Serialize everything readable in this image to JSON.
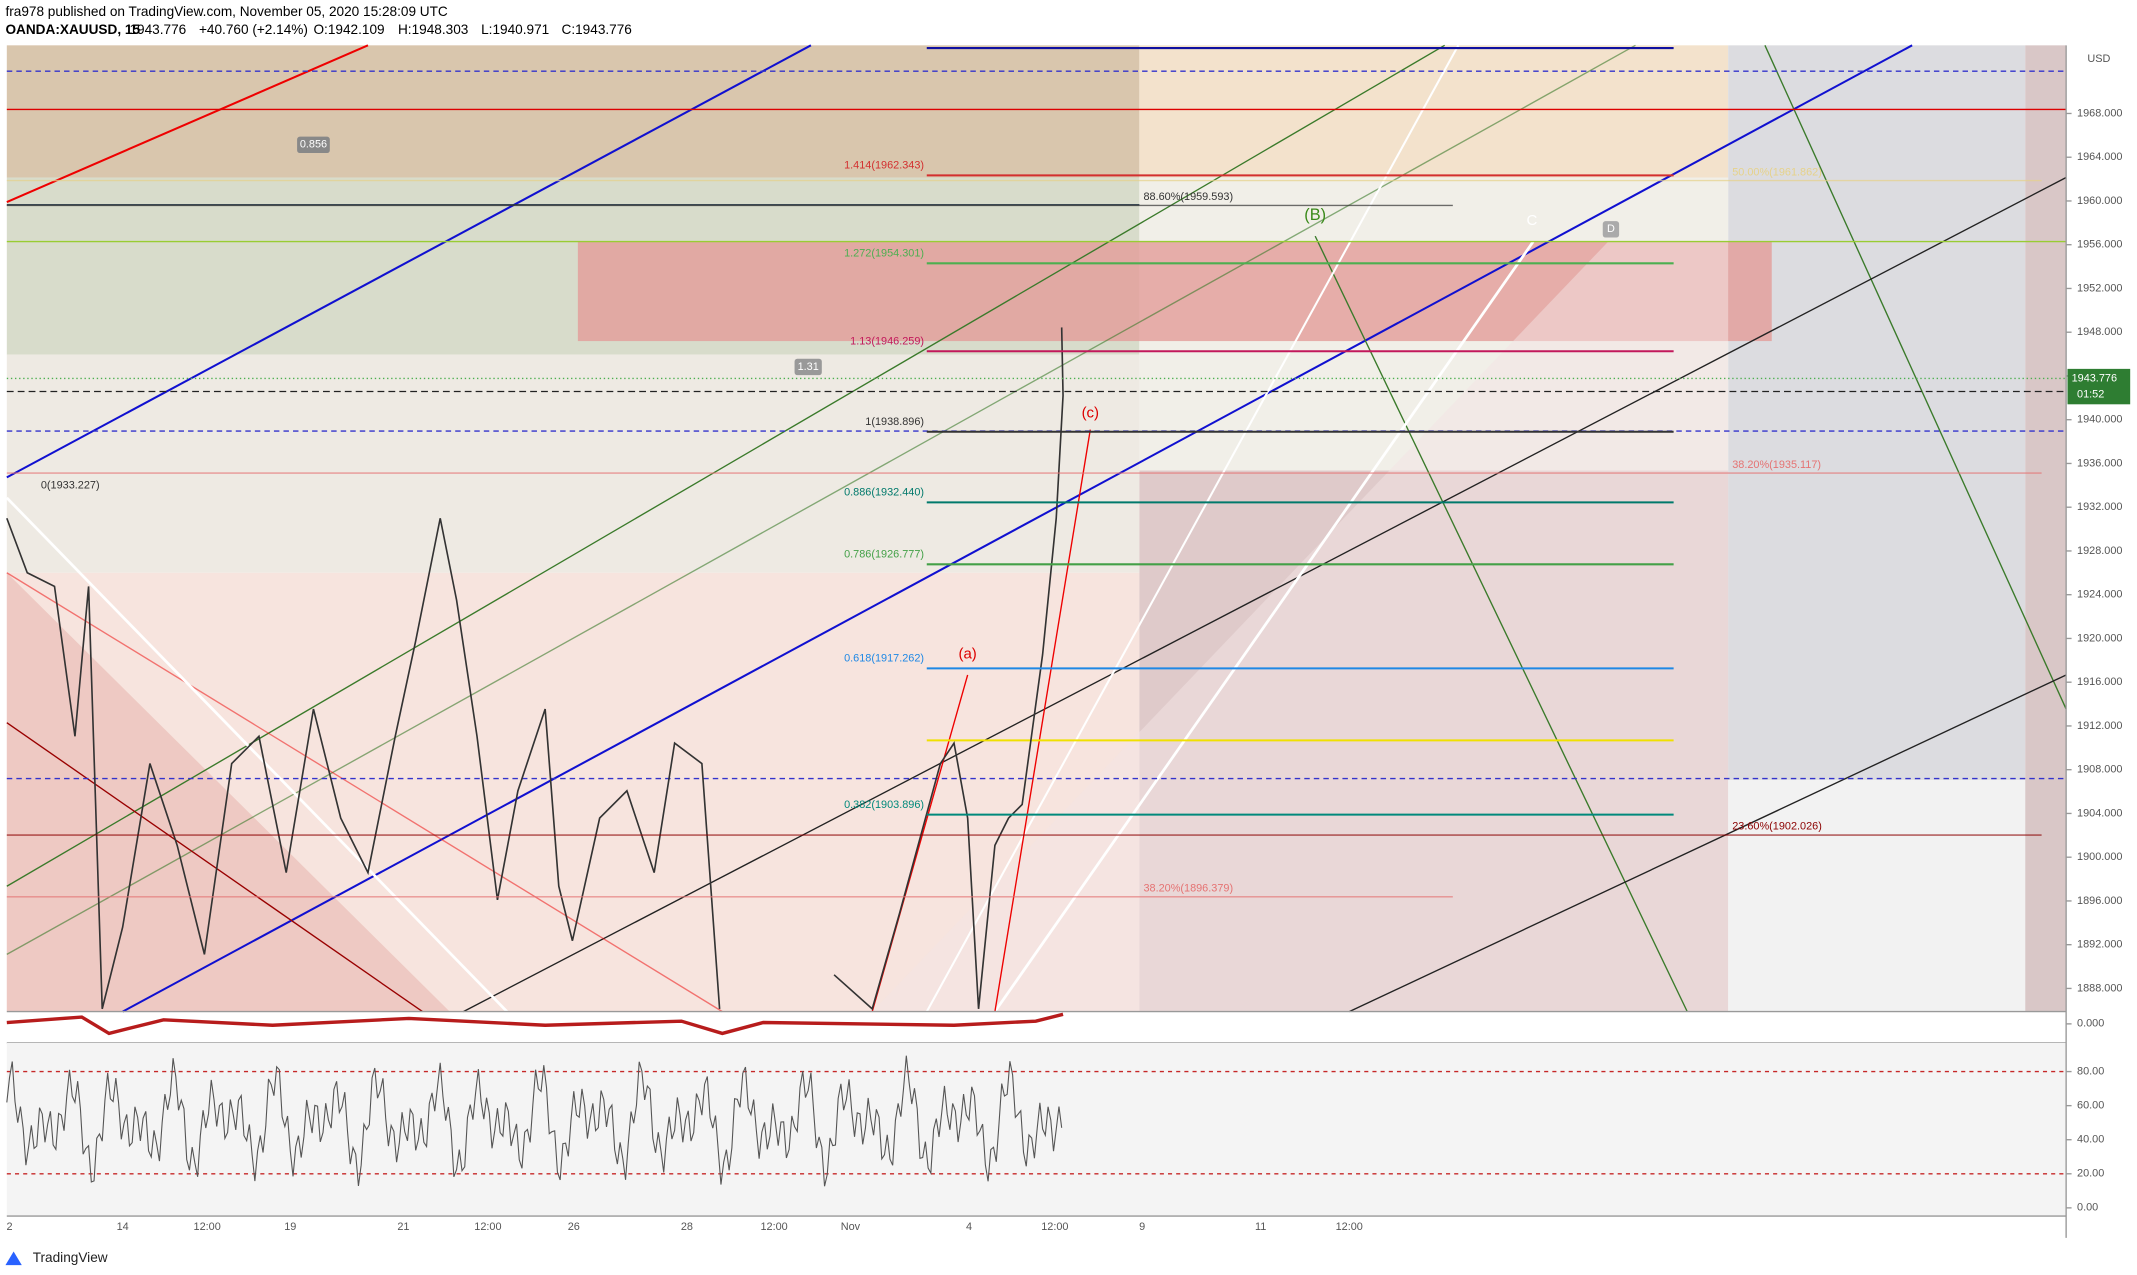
{
  "header": {
    "publisher": "fra978 published on TradingView.com, November 05, 2020 15:28:09 UTC",
    "symbol": "OANDA:XAUUSD, 15",
    "last": "1943.776",
    "change": "+40.760 (+2.14%)",
    "open": "O:1942.109",
    "high": "H:1948.303",
    "low": "L:1940.971",
    "close": "C:1943.776"
  },
  "price_axis": {
    "currency": "USD",
    "current_price": 1943.776,
    "current_label": "1943.776",
    "countdown": "01:52",
    "ylim": [
      1885,
      1974
    ],
    "ticks": [
      {
        "value": 1888,
        "label": "1888.000"
      },
      {
        "value": 1892,
        "label": "1892.000"
      },
      {
        "value": 1896,
        "label": "1896.000"
      },
      {
        "value": 1900,
        "label": "1900.000"
      },
      {
        "value": 1904,
        "label": "1904.000"
      },
      {
        "value": 1908,
        "label": "1908.000"
      },
      {
        "value": 1912,
        "label": "1912.000"
      },
      {
        "value": 1916,
        "label": "1916.000"
      },
      {
        "value": 1920,
        "label": "1920.000"
      },
      {
        "value": 1924,
        "label": "1924.000"
      },
      {
        "value": 1928,
        "label": "1928.000"
      },
      {
        "value": 1932,
        "label": "1932.000"
      },
      {
        "value": 1936,
        "label": "1936.000"
      },
      {
        "value": 1940,
        "label": "1940.000"
      },
      {
        "value": 1944,
        "label": "1944.000"
      },
      {
        "value": 1948,
        "label": "1948.000"
      },
      {
        "value": 1952,
        "label": "1952.000"
      },
      {
        "value": 1956,
        "label": "1956.000"
      },
      {
        "value": 1960,
        "label": "1960.000"
      },
      {
        "value": 1964,
        "label": "1964.000"
      },
      {
        "value": 1968,
        "label": "1968.000"
      }
    ]
  },
  "oscillator_axis": {
    "upper_tick": {
      "value": 0,
      "label": "0.000"
    },
    "ticks": [
      {
        "value": 0,
        "label": "0.00"
      },
      {
        "value": 20,
        "label": "20.00"
      },
      {
        "value": 40,
        "label": "40.00"
      },
      {
        "value": 60,
        "label": "60.00"
      },
      {
        "value": 80,
        "label": "80.00"
      }
    ]
  },
  "time_axis": [
    "2",
    "14",
    "12:00",
    "19",
    "21",
    "12:00",
    "26",
    "28",
    "12:00",
    "Nov",
    "4",
    "12:00",
    "9",
    "11",
    "12:00"
  ],
  "fib_levels": [
    {
      "label": "1.414(1962.343)",
      "value": 1962.343,
      "color": "#d32f2f"
    },
    {
      "label": "1.272(1954.301)",
      "value": 1954.301,
      "color": "#4caf50"
    },
    {
      "label": "1.13(1946.259)",
      "value": 1946.259,
      "color": "#c2185b"
    },
    {
      "label": "1(1938.896)",
      "value": 1938.896,
      "color": "#333333"
    },
    {
      "label": "0.886(1932.440)",
      "value": 1932.44,
      "color": "#00796b"
    },
    {
      "label": "0.786(1926.777)",
      "value": 1926.777,
      "color": "#43a047"
    },
    {
      "label": "0.618(1917.262)",
      "value": 1917.262,
      "color": "#1e88e5"
    },
    {
      "label": "0.382(1903.896)",
      "value": 1903.896,
      "color": "#00897b"
    }
  ],
  "retracements": [
    {
      "label": "88.60%(1959.593)",
      "value": 1959.593,
      "color": "#333333",
      "side": "mid"
    },
    {
      "label": "50.00%(1961.862)",
      "value": 1961.862,
      "color": "#e6d28a",
      "side": "right"
    },
    {
      "label": "38.20%(1935.117)",
      "value": 1935.117,
      "color": "#e57373",
      "side": "right"
    },
    {
      "label": "23.60%(1902.026)",
      "value": 1902.026,
      "color": "#8b0000",
      "side": "right"
    },
    {
      "label": "38.20%(1896.379)",
      "value": 1896.379,
      "color": "#e57373",
      "side": "mid"
    }
  ],
  "annotations": {
    "zero": "0(1933.227)",
    "ratio1": "0.856",
    "ratio2": "1.31",
    "wave_B": "(B)",
    "wave_C": "C",
    "wave_D": "D",
    "wave_a": "(a)",
    "wave_c": "(c)"
  },
  "footer": {
    "logo": "TradingView"
  }
}
